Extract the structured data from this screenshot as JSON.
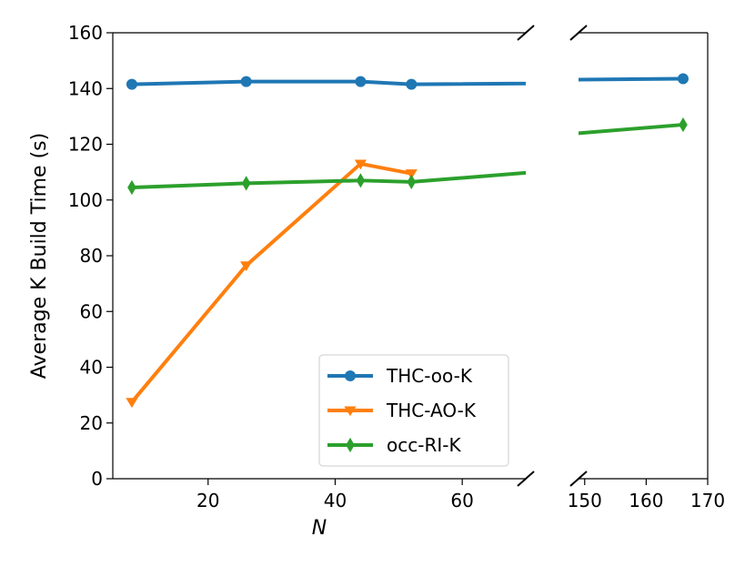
{
  "chart_data": {
    "type": "line",
    "title": "",
    "xlabel": "N",
    "ylabel": "Average K Build Time (s)",
    "ylim": [
      0,
      160
    ],
    "yticks": [
      "0",
      "20",
      "40",
      "60",
      "80",
      "100",
      "120",
      "140",
      "160"
    ],
    "broken_x_axis": true,
    "left_panel": {
      "xlim": [
        5,
        70
      ],
      "xticks": [
        "20",
        "40",
        "60"
      ]
    },
    "right_panel": {
      "xlim": [
        149,
        170
      ],
      "xticks": [
        "150",
        "160",
        "170"
      ]
    },
    "legend_position": "lower-center",
    "series": [
      {
        "name": "THC-oo-K",
        "color": "#1f77b4",
        "marker": "circle",
        "x": [
          8,
          26,
          44,
          52,
          166
        ],
        "y": [
          141.5,
          142.5,
          142.5,
          141.5,
          143.5
        ]
      },
      {
        "name": "THC-AO-K",
        "color": "#ff7f0e",
        "marker": "triangle-down",
        "x": [
          8,
          26,
          44,
          52
        ],
        "y": [
          27.5,
          76.5,
          113,
          109.5
        ]
      },
      {
        "name": "occ-RI-K",
        "color": "#2ca02c",
        "marker": "diamond",
        "x": [
          8,
          26,
          44,
          52,
          166
        ],
        "y": [
          104.5,
          106,
          107,
          106.5,
          127
        ]
      }
    ]
  }
}
